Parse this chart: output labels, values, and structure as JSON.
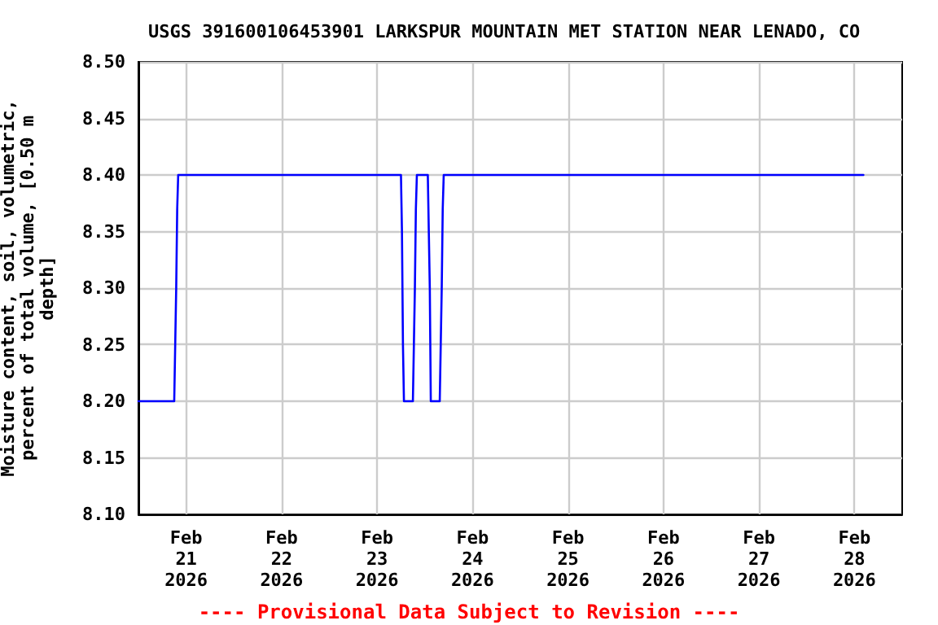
{
  "chart_data": {
    "type": "line",
    "title": "USGS 391600106453901 LARKSPUR MOUNTAIN MET STATION NEAR LENADO, CO",
    "ylabel": "Moisture content, soil, volumetric, percent of total volume, [0.50 m depth]",
    "annotations": [
      "---- Provisional Data Subject to Revision ----"
    ],
    "series": [
      {
        "color": "#0000ff",
        "x": [
          "2026-02-20T12:00",
          "2026-02-20T21:00",
          "2026-02-20T21:15",
          "2026-02-20T21:30",
          "2026-02-20T21:45",
          "2026-02-20T22:00",
          "2026-02-23T06:00",
          "2026-02-23T06:15",
          "2026-02-23T06:30",
          "2026-02-23T06:45",
          "2026-02-23T09:00",
          "2026-02-23T09:15",
          "2026-02-23T09:30",
          "2026-02-23T09:45",
          "2026-02-23T10:00",
          "2026-02-23T12:45",
          "2026-02-23T13:00",
          "2026-02-23T13:15",
          "2026-02-23T13:30",
          "2026-02-23T15:45",
          "2026-02-23T16:00",
          "2026-02-23T16:15",
          "2026-02-23T16:30",
          "2026-02-23T16:45",
          "2026-02-28T02:15"
        ],
        "values": [
          8.2,
          8.2,
          8.25,
          8.3,
          8.37,
          8.4,
          8.4,
          8.35,
          8.25,
          8.2,
          8.2,
          8.25,
          8.3,
          8.37,
          8.4,
          8.4,
          8.35,
          8.3,
          8.2,
          8.2,
          8.25,
          8.3,
          8.37,
          8.4,
          8.4
        ]
      }
    ],
    "xlim": [
      "2026-02-20T12:00",
      "2026-02-28T12:00"
    ],
    "xticks": [
      {
        "value": "2026-02-21",
        "label": "Feb\n21\n2026"
      },
      {
        "value": "2026-02-22",
        "label": "Feb\n22\n2026"
      },
      {
        "value": "2026-02-23",
        "label": "Feb\n23\n2026"
      },
      {
        "value": "2026-02-24",
        "label": "Feb\n24\n2026"
      },
      {
        "value": "2026-02-25",
        "label": "Feb\n25\n2026"
      },
      {
        "value": "2026-02-26",
        "label": "Feb\n26\n2026"
      },
      {
        "value": "2026-02-27",
        "label": "Feb\n27\n2026"
      },
      {
        "value": "2026-02-28",
        "label": "Feb\n28\n2026"
      }
    ],
    "ylim": [
      8.1,
      8.5
    ],
    "yticks": [
      {
        "value": 8.1,
        "label": "8.10"
      },
      {
        "value": 8.15,
        "label": "8.15"
      },
      {
        "value": 8.2,
        "label": "8.20"
      },
      {
        "value": 8.25,
        "label": "8.25"
      },
      {
        "value": 8.3,
        "label": "8.30"
      },
      {
        "value": 8.35,
        "label": "8.35"
      },
      {
        "value": 8.4,
        "label": "8.40"
      },
      {
        "value": 8.45,
        "label": "8.45"
      },
      {
        "value": 8.5,
        "label": "8.50"
      }
    ],
    "grid": true,
    "marker": "none",
    "line_style": "solid"
  }
}
